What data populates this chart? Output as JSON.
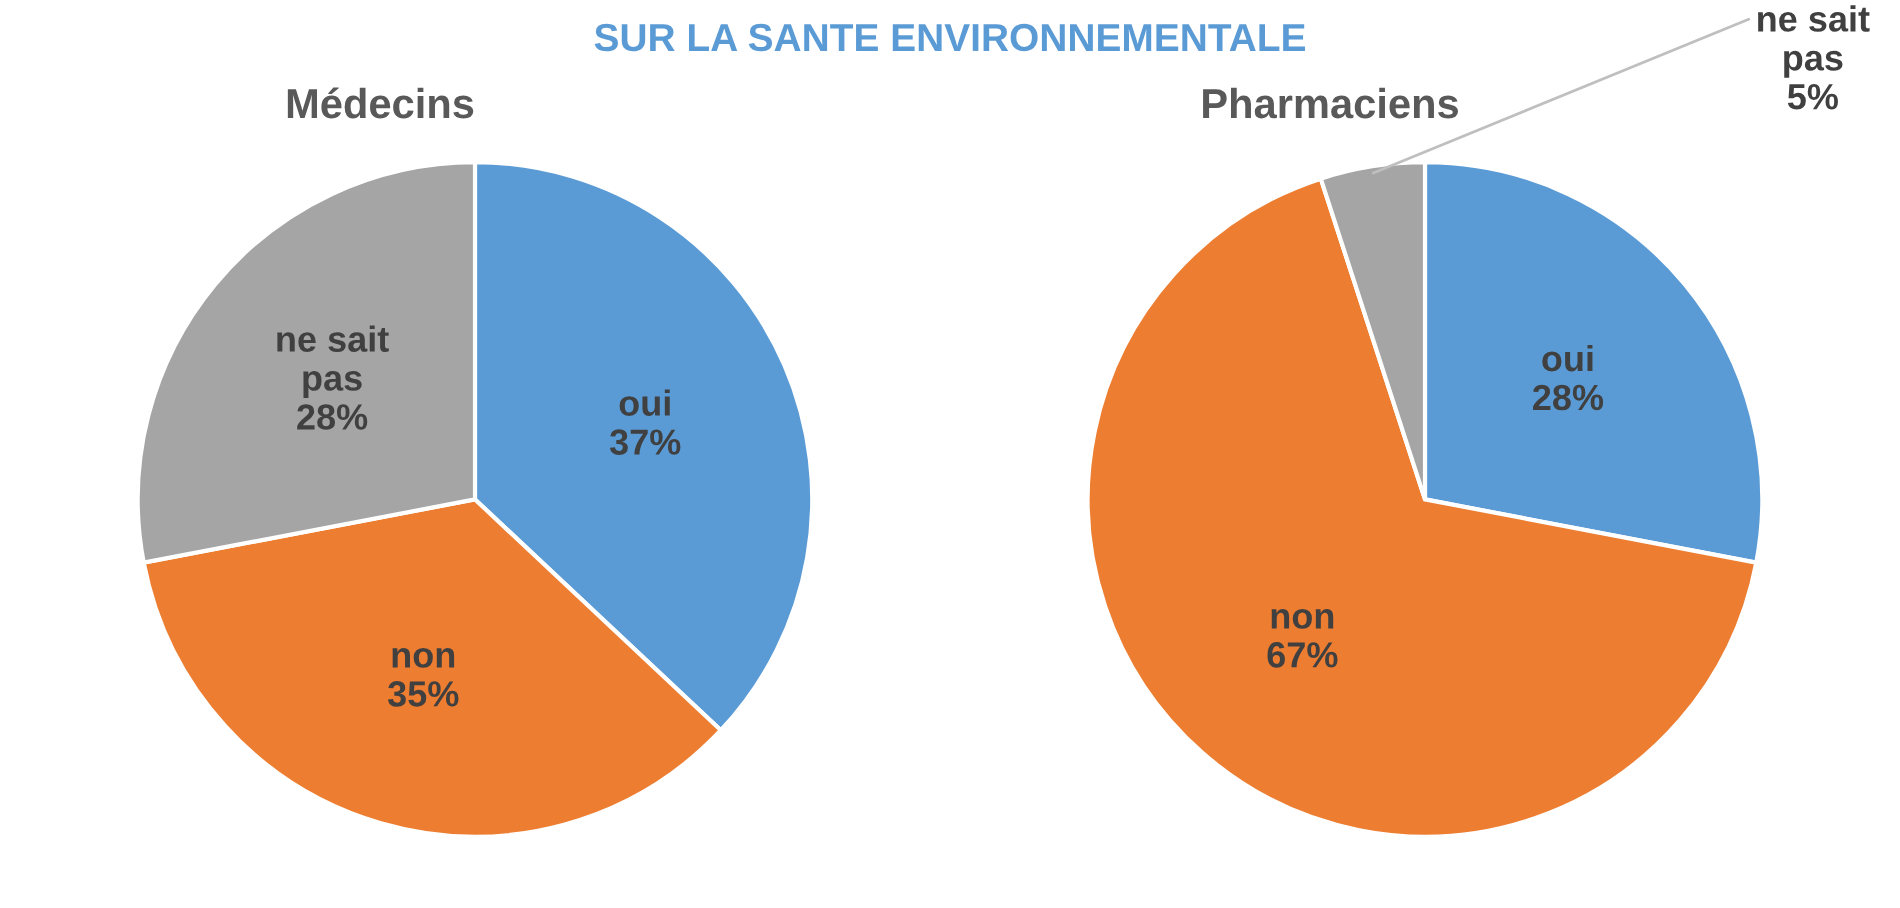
{
  "chart_data": [
    {
      "type": "pie",
      "title": "Médecins",
      "categories": [
        "oui",
        "non",
        "ne sait pas"
      ],
      "values": [
        37,
        35,
        28
      ],
      "value_labels": [
        "37%",
        "35%",
        "28%"
      ],
      "colors": [
        "#5b9bd5",
        "#ed7d31",
        "#a5a5a5"
      ],
      "annotations": [
        "SUR LA SANTE ENVIRONNEMENTALE"
      ]
    },
    {
      "type": "pie",
      "title": "Pharmaciens",
      "categories": [
        "oui",
        "non",
        "ne sait pas"
      ],
      "values": [
        28,
        67,
        5
      ],
      "value_labels": [
        "28%",
        "67%",
        "5%"
      ],
      "colors": [
        "#5b9bd5",
        "#ed7d31",
        "#a5a5a5"
      ]
    }
  ]
}
